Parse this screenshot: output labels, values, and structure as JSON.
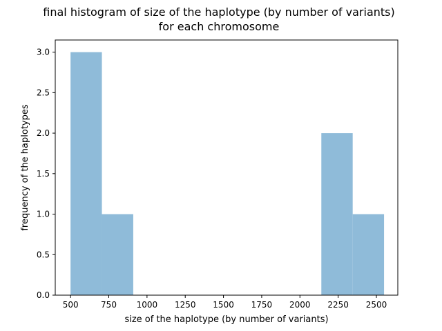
{
  "chart_data": {
    "type": "bar",
    "title_lines": [
      "final histogram of size of the haplotype (by number of variants)",
      "for each chromosome"
    ],
    "xlabel": "size of the haplotype (by number of variants)",
    "ylabel": "frequency of the haplotypes",
    "xlim": [
      400,
      2640
    ],
    "ylim": [
      0,
      3.15
    ],
    "xticks": [
      500,
      750,
      1000,
      1250,
      1500,
      1750,
      2000,
      2250,
      2500
    ],
    "xtick_labels": [
      "500",
      "750",
      "1000",
      "1250",
      "1500",
      "1750",
      "2000",
      "2250",
      "2500"
    ],
    "yticks": [
      0,
      0.5,
      1,
      1.5,
      2,
      2.5,
      3
    ],
    "ytick_labels": [
      "0.0",
      "0.5",
      "1.0",
      "1.5",
      "2.0",
      "2.5",
      "3.0"
    ],
    "bins": [
      {
        "x0": 500,
        "x1": 705,
        "value": 3
      },
      {
        "x0": 705,
        "x1": 910,
        "value": 1
      },
      {
        "x0": 910,
        "x1": 1115,
        "value": 0
      },
      {
        "x0": 1115,
        "x1": 1320,
        "value": 0
      },
      {
        "x0": 1320,
        "x1": 1525,
        "value": 0
      },
      {
        "x0": 1525,
        "x1": 1730,
        "value": 0
      },
      {
        "x0": 1730,
        "x1": 1935,
        "value": 0
      },
      {
        "x0": 1935,
        "x1": 2140,
        "value": 0
      },
      {
        "x0": 2140,
        "x1": 2345,
        "value": 2
      },
      {
        "x0": 2345,
        "x1": 2550,
        "value": 1
      }
    ],
    "bar_color": "#8fbbd9",
    "grid": false
  }
}
